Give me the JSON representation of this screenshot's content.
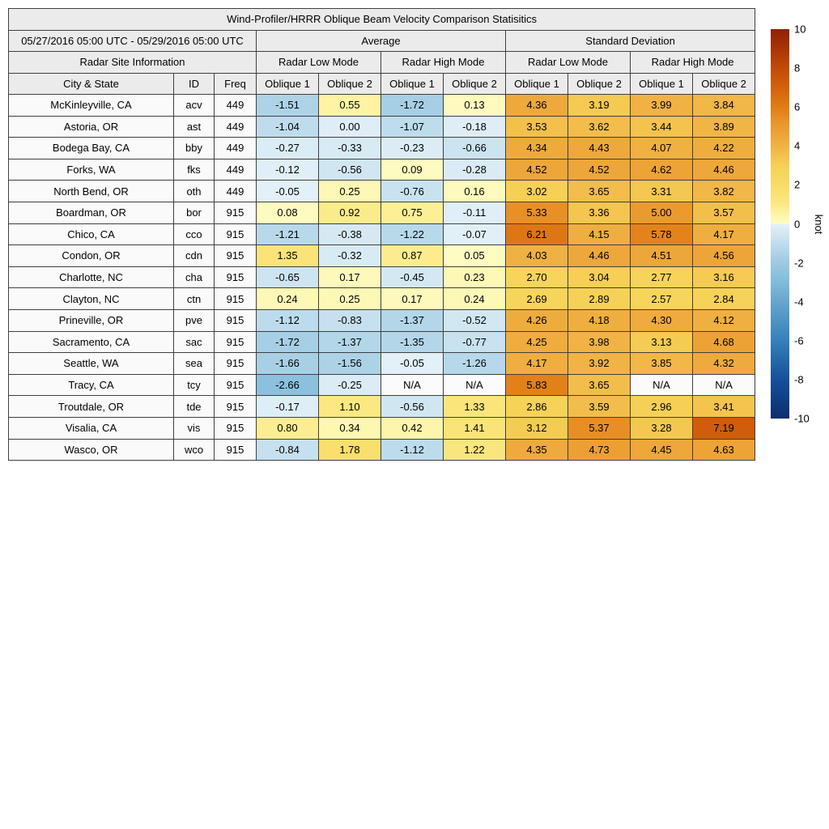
{
  "chart_data": {
    "type": "table",
    "title": "Wind-Profiler/HRRR Oblique Beam Velocity Comparison Statisitics",
    "header": {
      "date_range": "05/27/2016 05:00 UTC - 05/29/2016 05:00 UTC",
      "group_average": "Average",
      "group_stddev": "Standard Deviation",
      "radar_site_info": "Radar Site Information",
      "mode_low": "Radar Low Mode",
      "mode_high": "Radar High Mode",
      "col_city": "City & State",
      "col_id": "ID",
      "col_freq": "Freq",
      "oblique": [
        "Oblique 1",
        "Oblique 2"
      ]
    },
    "na_text": "N/A",
    "rows": [
      {
        "city": "McKinleyville, CA",
        "id": "acv",
        "freq": "449",
        "values": [
          "-1.51",
          "0.55",
          "-1.72",
          "0.13",
          "4.36",
          "3.19",
          "3.99",
          "3.84"
        ]
      },
      {
        "city": "Astoria, OR",
        "id": "ast",
        "freq": "449",
        "values": [
          "-1.04",
          "0.00",
          "-1.07",
          "-0.18",
          "3.53",
          "3.62",
          "3.44",
          "3.89"
        ]
      },
      {
        "city": "Bodega Bay, CA",
        "id": "bby",
        "freq": "449",
        "values": [
          "-0.27",
          "-0.33",
          "-0.23",
          "-0.66",
          "4.34",
          "4.43",
          "4.07",
          "4.22"
        ]
      },
      {
        "city": "Forks, WA",
        "id": "fks",
        "freq": "449",
        "values": [
          "-0.12",
          "-0.56",
          "0.09",
          "-0.28",
          "4.52",
          "4.52",
          "4.62",
          "4.46"
        ]
      },
      {
        "city": "North Bend, OR",
        "id": "oth",
        "freq": "449",
        "values": [
          "-0.05",
          "0.25",
          "-0.76",
          "0.16",
          "3.02",
          "3.65",
          "3.31",
          "3.82"
        ]
      },
      {
        "city": "Boardman, OR",
        "id": "bor",
        "freq": "915",
        "values": [
          "0.08",
          "0.92",
          "0.75",
          "-0.11",
          "5.33",
          "3.36",
          "5.00",
          "3.57"
        ]
      },
      {
        "city": "Chico, CA",
        "id": "cco",
        "freq": "915",
        "values": [
          "-1.21",
          "-0.38",
          "-1.22",
          "-0.07",
          "6.21",
          "4.15",
          "5.78",
          "4.17"
        ]
      },
      {
        "city": "Condon, OR",
        "id": "cdn",
        "freq": "915",
        "values": [
          "1.35",
          "-0.32",
          "0.87",
          "0.05",
          "4.03",
          "4.46",
          "4.51",
          "4.56"
        ]
      },
      {
        "city": "Charlotte, NC",
        "id": "cha",
        "freq": "915",
        "values": [
          "-0.65",
          "0.17",
          "-0.45",
          "0.23",
          "2.70",
          "3.04",
          "2.77",
          "3.16"
        ]
      },
      {
        "city": "Clayton, NC",
        "id": "ctn",
        "freq": "915",
        "values": [
          "0.24",
          "0.25",
          "0.17",
          "0.24",
          "2.69",
          "2.89",
          "2.57",
          "2.84"
        ]
      },
      {
        "city": "Prineville, OR",
        "id": "pve",
        "freq": "915",
        "values": [
          "-1.12",
          "-0.83",
          "-1.37",
          "-0.52",
          "4.26",
          "4.18",
          "4.30",
          "4.12"
        ]
      },
      {
        "city": "Sacramento, CA",
        "id": "sac",
        "freq": "915",
        "values": [
          "-1.72",
          "-1.37",
          "-1.35",
          "-0.77",
          "4.25",
          "3.98",
          "3.13",
          "4.68"
        ]
      },
      {
        "city": "Seattle, WA",
        "id": "sea",
        "freq": "915",
        "values": [
          "-1.66",
          "-1.56",
          "-0.05",
          "-1.26",
          "4.17",
          "3.92",
          "3.85",
          "4.32"
        ]
      },
      {
        "city": "Tracy, CA",
        "id": "tcy",
        "freq": "915",
        "values": [
          "-2.66",
          "-0.25",
          "N/A",
          "N/A",
          "5.83",
          "3.65",
          "N/A",
          "N/A"
        ]
      },
      {
        "city": "Troutdale, OR",
        "id": "tde",
        "freq": "915",
        "values": [
          "-0.17",
          "1.10",
          "-0.56",
          "1.33",
          "2.86",
          "3.59",
          "2.96",
          "3.41"
        ]
      },
      {
        "city": "Visalia, CA",
        "id": "vis",
        "freq": "915",
        "values": [
          "0.80",
          "0.34",
          "0.42",
          "1.41",
          "3.12",
          "5.37",
          "3.28",
          "7.19"
        ]
      },
      {
        "city": "Wasco, OR",
        "id": "wco",
        "freq": "915",
        "values": [
          "-0.84",
          "1.78",
          "-1.12",
          "1.22",
          "4.35",
          "4.73",
          "4.45",
          "4.63"
        ]
      }
    ],
    "colorbar": {
      "unit": "knot",
      "min": -10,
      "max": 10,
      "ticks": [
        10,
        8,
        6,
        4,
        2,
        0,
        -2,
        -4,
        -6,
        -8,
        -10
      ]
    },
    "colormap": {
      "positive": [
        [
          0,
          "#fefcc6"
        ],
        [
          0.5,
          "#fdf4a6"
        ],
        [
          1,
          "#fbe985"
        ],
        [
          2,
          "#f8dc66"
        ],
        [
          3,
          "#f6d055"
        ],
        [
          4,
          "#f0b244"
        ],
        [
          5,
          "#eb9a2e"
        ],
        [
          6,
          "#e17c15"
        ],
        [
          7,
          "#d2620c"
        ],
        [
          8,
          "#c24a08"
        ],
        [
          10,
          "#8f2004"
        ]
      ],
      "negative": [
        [
          0,
          "#e4f1f8"
        ],
        [
          0.5,
          "#d2e7f2"
        ],
        [
          1,
          "#c0dded"
        ],
        [
          1.5,
          "#aed3e7"
        ],
        [
          2,
          "#9ccae2"
        ],
        [
          3,
          "#82bcda"
        ],
        [
          4,
          "#67a5cd"
        ],
        [
          6,
          "#3381ba"
        ],
        [
          8,
          "#174f9b"
        ],
        [
          10,
          "#0c2e6e"
        ]
      ],
      "na_color": "#fbfbfb"
    }
  }
}
